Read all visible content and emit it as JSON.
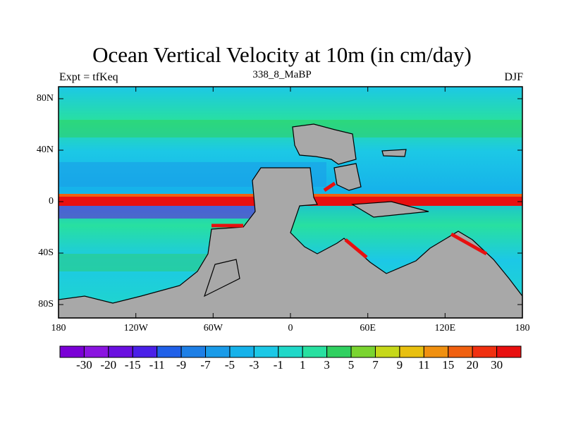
{
  "title": "Ocean Vertical Velocity at 10m (in cm/day)",
  "subtitle_left": "Expt = tfKeq",
  "subtitle_center": "338_8_MaBP",
  "subtitle_right": "DJF",
  "y_ticks": [
    "80N",
    "40N",
    "0",
    "40S",
    "80S"
  ],
  "x_ticks": [
    "180",
    "120W",
    "60W",
    "0",
    "60E",
    "120E",
    "180"
  ],
  "colorbar": {
    "labels": [
      "-30",
      "-20",
      "-15",
      "-11",
      "-9",
      "-7",
      "-5",
      "-3",
      "-1",
      "1",
      "3",
      "5",
      "7",
      "9",
      "11",
      "15",
      "20",
      "30"
    ],
    "colors": [
      "#7a00d6",
      "#8a14e0",
      "#6a10e0",
      "#4a20e8",
      "#2060e8",
      "#1e7fe6",
      "#1a9be8",
      "#16b2ea",
      "#1cc8e6",
      "#20d8c8",
      "#28e0a0",
      "#30d060",
      "#7ad430",
      "#c6d81a",
      "#e8c010",
      "#f09010",
      "#f06010",
      "#f03010",
      "#e81010"
    ]
  },
  "colors": {
    "land": "#a8a8a8",
    "ocean_base": "#26d4cf",
    "equatorial_band": "#e81010"
  }
}
